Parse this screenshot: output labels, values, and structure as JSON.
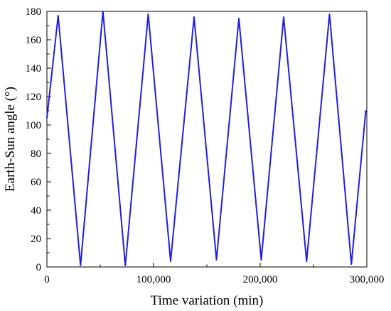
{
  "chart_data": {
    "type": "line",
    "title": "",
    "xlabel": "Time variation (min)",
    "ylabel": "Earth-Sun angle (°)",
    "xlim": [
      0,
      300000
    ],
    "ylim": [
      0,
      180
    ],
    "x_ticks": [
      0,
      100000,
      200000,
      300000
    ],
    "x_tick_labels": [
      "0",
      "100,000",
      "200,000",
      "300,000"
    ],
    "x_minor_ticks": [
      50000,
      150000,
      250000
    ],
    "y_ticks": [
      0,
      20,
      40,
      60,
      80,
      100,
      120,
      140,
      160,
      180
    ],
    "y_tick_labels": [
      "0",
      "20",
      "40",
      "60",
      "80",
      "100",
      "120",
      "140",
      "160",
      "180"
    ],
    "grid": false,
    "legend": "none",
    "series": [
      {
        "color": "#1f1fe0",
        "x": [
          0,
          10500,
          31500,
          52500,
          73500,
          95000,
          116000,
          138000,
          159000,
          180000,
          201000,
          222000,
          243500,
          265000,
          285500,
          299000
        ],
        "y": [
          105,
          177,
          1,
          180,
          1,
          178,
          4,
          176,
          5,
          175,
          5,
          176,
          4,
          178,
          2,
          110
        ]
      }
    ]
  }
}
